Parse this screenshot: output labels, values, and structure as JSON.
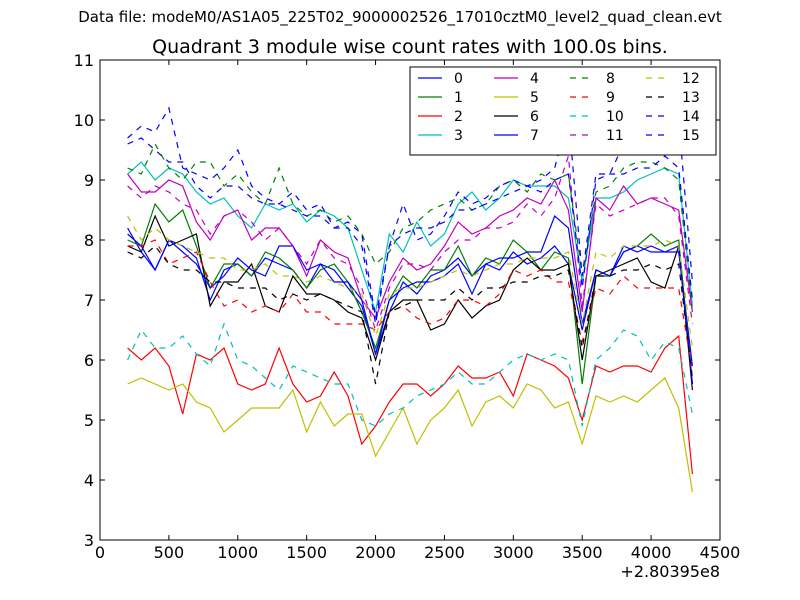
{
  "chart_data": {
    "type": "line",
    "suptitle": "Data file: modeM0/AS1A05_225T02_9000002526_17010cztM0_level2_quad_clean.evt",
    "title": "Quadrant 3 module wise count rates with 100.0s bins.",
    "xlabel": "",
    "ylabel": "",
    "x_offset_label": "+2.80395e8",
    "xlim": [
      0,
      4500
    ],
    "ylim": [
      3,
      11
    ],
    "xticks": [
      "0",
      "500",
      "1000",
      "1500",
      "2000",
      "2500",
      "3000",
      "3500",
      "4000",
      "4500"
    ],
    "yticks": [
      "3",
      "4",
      "5",
      "6",
      "7",
      "8",
      "9",
      "10",
      "11"
    ],
    "legend_position": "top-right",
    "x": [
      200,
      300,
      400,
      500,
      600,
      700,
      800,
      900,
      1000,
      1100,
      1200,
      1300,
      1400,
      1500,
      1600,
      1700,
      1800,
      1900,
      2000,
      2100,
      2200,
      2300,
      2400,
      2500,
      2600,
      2700,
      2800,
      2900,
      3000,
      3100,
      3200,
      3300,
      3400,
      3500,
      3600,
      3700,
      3800,
      3900,
      4000,
      4100,
      4200,
      4300
    ],
    "series": [
      {
        "name": "0",
        "color": "#0000ff",
        "dash": "solid",
        "values": [
          8.2,
          7.8,
          7.5,
          8.0,
          7.9,
          7.7,
          7.0,
          7.5,
          7.6,
          7.4,
          7.7,
          7.6,
          7.5,
          7.2,
          7.6,
          7.5,
          7.2,
          6.9,
          6.1,
          6.8,
          7.3,
          7.1,
          7.4,
          7.5,
          7.7,
          7.4,
          7.6,
          7.5,
          7.8,
          7.6,
          7.7,
          7.9,
          7.6,
          6.5,
          7.5,
          7.4,
          7.9,
          7.8,
          7.9,
          7.8,
          7.8,
          5.9
        ]
      },
      {
        "name": "1",
        "color": "#008000",
        "dash": "solid",
        "values": [
          8.0,
          7.9,
          8.6,
          8.3,
          8.5,
          7.9,
          7.2,
          7.6,
          7.6,
          7.4,
          7.8,
          7.7,
          7.5,
          7.2,
          7.5,
          7.6,
          7.3,
          6.8,
          6.2,
          7.0,
          7.4,
          7.2,
          7.5,
          7.5,
          7.9,
          7.4,
          7.7,
          7.6,
          8.0,
          7.8,
          7.5,
          7.8,
          7.7,
          5.6,
          7.4,
          7.4,
          7.8,
          7.9,
          8.1,
          7.9,
          8.0,
          5.6
        ]
      },
      {
        "name": "2",
        "color": "#ff0000",
        "dash": "solid",
        "values": [
          6.2,
          6.0,
          6.2,
          5.9,
          5.1,
          6.1,
          6.0,
          6.2,
          5.6,
          5.5,
          5.6,
          6.2,
          5.6,
          5.3,
          5.4,
          5.8,
          5.4,
          4.6,
          4.9,
          5.3,
          5.6,
          5.6,
          5.4,
          5.6,
          5.9,
          5.7,
          5.7,
          5.8,
          5.4,
          6.1,
          6.0,
          5.9,
          5.7,
          5.0,
          5.9,
          5.8,
          5.9,
          5.9,
          5.8,
          6.2,
          6.4,
          4.1
        ]
      },
      {
        "name": "3",
        "color": "#00bfbf",
        "dash": "solid",
        "values": [
          9.1,
          9.3,
          9.0,
          9.2,
          9.1,
          8.8,
          8.6,
          8.7,
          8.4,
          8.2,
          8.6,
          8.5,
          8.6,
          8.3,
          8.5,
          8.4,
          8.2,
          7.5,
          6.8,
          8.1,
          7.8,
          8.3,
          7.9,
          8.1,
          8.6,
          8.8,
          8.5,
          8.7,
          9.0,
          8.9,
          8.9,
          8.9,
          8.7,
          7.3,
          8.7,
          8.7,
          8.8,
          9.0,
          9.1,
          9.2,
          9.1,
          6.9
        ]
      },
      {
        "name": "4",
        "color": "#bf00bf",
        "dash": "solid",
        "values": [
          9.1,
          8.8,
          8.8,
          9.0,
          8.9,
          8.3,
          8.0,
          8.4,
          8.5,
          8.0,
          8.2,
          8.2,
          7.9,
          7.4,
          8.0,
          7.8,
          7.7,
          7.0,
          6.7,
          7.3,
          7.7,
          7.5,
          7.6,
          7.9,
          8.3,
          8.1,
          8.2,
          8.4,
          8.5,
          8.7,
          8.6,
          9.0,
          8.5,
          6.8,
          8.7,
          8.5,
          8.9,
          8.6,
          8.7,
          8.6,
          8.5,
          6.8
        ]
      },
      {
        "name": "5",
        "color": "#bfbf00",
        "dash": "solid",
        "values": [
          5.6,
          5.7,
          5.6,
          5.5,
          5.6,
          5.3,
          5.2,
          4.8,
          5.0,
          5.2,
          5.2,
          5.2,
          5.5,
          4.8,
          5.3,
          4.9,
          5.1,
          5.1,
          4.4,
          4.8,
          5.2,
          4.6,
          5.0,
          5.2,
          5.5,
          4.9,
          5.3,
          5.4,
          5.2,
          5.6,
          5.5,
          5.2,
          5.3,
          4.6,
          5.4,
          5.3,
          5.4,
          5.3,
          5.5,
          5.7,
          5.2,
          3.8
        ]
      },
      {
        "name": "6",
        "color": "#000000",
        "dash": "solid",
        "values": [
          7.9,
          7.8,
          8.4,
          7.9,
          8.0,
          8.1,
          6.9,
          7.3,
          7.3,
          7.6,
          6.9,
          6.8,
          7.4,
          7.1,
          7.1,
          7.0,
          6.8,
          6.7,
          6.0,
          6.8,
          7.0,
          7.0,
          6.5,
          6.6,
          7.0,
          6.7,
          6.9,
          7.0,
          7.5,
          7.7,
          7.5,
          7.5,
          7.6,
          6.0,
          7.4,
          7.5,
          7.6,
          7.7,
          7.3,
          7.2,
          7.9,
          5.5
        ]
      },
      {
        "name": "7",
        "color": "#0000ff",
        "dash": "solid",
        "values": [
          8.1,
          7.9,
          7.5,
          8.0,
          7.8,
          7.6,
          7.2,
          7.4,
          7.7,
          7.5,
          7.4,
          7.9,
          7.9,
          7.5,
          7.6,
          7.3,
          7.3,
          7.0,
          6.1,
          7.0,
          7.2,
          7.3,
          7.3,
          7.4,
          7.6,
          7.1,
          7.6,
          7.7,
          7.7,
          7.8,
          7.8,
          8.4,
          8.2,
          6.6,
          7.5,
          7.4,
          7.8,
          7.9,
          7.8,
          7.8,
          7.9,
          5.6
        ]
      },
      {
        "name": "8",
        "color": "#008000",
        "dash": "dashed",
        "values": [
          9.2,
          9.1,
          9.6,
          9.2,
          9.0,
          9.3,
          9.3,
          8.9,
          9.1,
          8.8,
          8.6,
          9.2,
          8.6,
          8.4,
          8.5,
          8.3,
          8.4,
          8.1,
          7.6,
          7.8,
          8.2,
          8.3,
          8.5,
          8.6,
          8.7,
          8.5,
          8.6,
          8.9,
          9.0,
          8.8,
          9.1,
          9.0,
          9.1,
          7.4,
          8.8,
          8.9,
          9.2,
          9.3,
          9.3,
          9.2,
          9.0,
          6.8
        ]
      },
      {
        "name": "9",
        "color": "#ff0000",
        "dash": "dashed",
        "values": [
          7.9,
          7.9,
          8.0,
          7.6,
          7.7,
          7.8,
          7.3,
          6.9,
          7.0,
          6.8,
          6.9,
          6.8,
          7.1,
          6.8,
          6.8,
          6.6,
          6.6,
          6.6,
          6.5,
          6.8,
          6.9,
          6.7,
          6.6,
          6.7,
          7.0,
          7.0,
          6.9,
          7.1,
          7.5,
          7.4,
          7.5,
          7.3,
          7.3,
          6.3,
          7.2,
          7.1,
          7.4,
          7.2,
          7.2,
          7.2,
          7.2,
          5.8
        ]
      },
      {
        "name": "10",
        "color": "#00bfbf",
        "dash": "dashed",
        "values": [
          6.0,
          6.5,
          6.2,
          6.2,
          6.4,
          6.1,
          5.9,
          6.6,
          6.0,
          5.9,
          5.7,
          5.5,
          5.9,
          5.8,
          5.7,
          5.6,
          5.6,
          5.0,
          4.9,
          5.1,
          5.2,
          5.4,
          5.5,
          5.6,
          5.8,
          5.6,
          5.6,
          5.8,
          6.0,
          6.1,
          6.0,
          6.1,
          6.0,
          4.9,
          6.0,
          6.2,
          6.5,
          6.4,
          6.0,
          6.3,
          6.2,
          5.1
        ]
      },
      {
        "name": "11",
        "color": "#bf00bf",
        "dash": "dashed",
        "values": [
          8.9,
          8.7,
          8.9,
          8.8,
          8.6,
          8.5,
          8.1,
          8.4,
          8.5,
          8.3,
          8.0,
          8.2,
          7.9,
          7.6,
          8.0,
          7.7,
          7.6,
          7.2,
          6.5,
          7.2,
          7.6,
          7.6,
          7.5,
          7.8,
          8.0,
          8.0,
          8.2,
          8.2,
          8.3,
          8.6,
          8.4,
          8.7,
          9.4,
          6.9,
          8.6,
          8.4,
          8.5,
          8.6,
          8.7,
          8.7,
          8.4,
          6.6
        ]
      },
      {
        "name": "12",
        "color": "#bfbf00",
        "dash": "dashed",
        "values": [
          8.4,
          8.0,
          8.2,
          8.0,
          7.9,
          7.8,
          7.7,
          7.7,
          7.5,
          7.5,
          7.6,
          7.4,
          7.4,
          7.3,
          7.4,
          7.3,
          7.2,
          7.1,
          6.4,
          7.1,
          7.2,
          7.2,
          7.3,
          7.4,
          7.5,
          7.4,
          7.5,
          7.6,
          7.6,
          7.7,
          7.7,
          7.7,
          7.8,
          6.6,
          7.8,
          7.7,
          7.9,
          7.9,
          7.9,
          8.0,
          7.9,
          6.2
        ]
      },
      {
        "name": "13",
        "color": "#000000",
        "dash": "dashed",
        "values": [
          7.8,
          7.7,
          7.9,
          7.6,
          7.5,
          7.5,
          7.3,
          7.3,
          7.2,
          7.2,
          7.2,
          7.0,
          7.1,
          7.0,
          7.1,
          7.0,
          6.9,
          6.8,
          5.6,
          6.8,
          6.9,
          7.0,
          7.0,
          7.0,
          7.2,
          7.0,
          7.2,
          7.2,
          7.3,
          7.3,
          7.4,
          7.4,
          7.5,
          6.2,
          7.4,
          7.4,
          7.5,
          7.5,
          7.6,
          7.5,
          7.6,
          5.7
        ]
      },
      {
        "name": "14",
        "color": "#0000ff",
        "dash": "dashed",
        "values": [
          9.7,
          9.9,
          9.8,
          10.2,
          9.2,
          9.1,
          9.0,
          9.2,
          9.5,
          8.9,
          8.7,
          8.6,
          8.8,
          8.5,
          8.6,
          8.2,
          8.3,
          8.1,
          6.7,
          7.9,
          8.6,
          8.0,
          8.1,
          8.4,
          8.8,
          8.6,
          8.7,
          8.9,
          9.0,
          8.9,
          9.0,
          9.2,
          10.1,
          7.4,
          9.1,
          9.1,
          9.6,
          9.5,
          9.7,
          9.8,
          10.0,
          7.3
        ]
      },
      {
        "name": "15",
        "color": "#0000ff",
        "dash": "dashed",
        "values": [
          9.6,
          9.7,
          9.5,
          9.3,
          9.3,
          8.9,
          8.7,
          8.9,
          8.9,
          8.7,
          8.6,
          8.6,
          8.5,
          8.4,
          8.4,
          8.2,
          8.2,
          7.9,
          6.6,
          7.9,
          8.1,
          8.2,
          8.2,
          8.3,
          8.5,
          8.5,
          8.6,
          8.7,
          8.8,
          8.9,
          8.8,
          9.0,
          9.1,
          7.2,
          9.0,
          9.1,
          9.1,
          9.2,
          9.2,
          9.4,
          9.2,
          7.0
        ]
      }
    ]
  }
}
